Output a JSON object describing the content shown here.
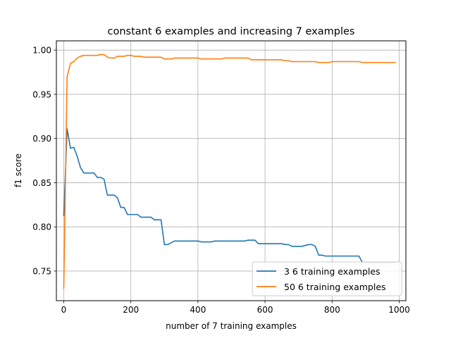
{
  "chart_data": {
    "type": "line",
    "title": "constant 6 examples and increasing 7 examples",
    "xlabel": "number of 7 training examples",
    "ylabel": "f1 score",
    "xlim": [
      -22,
      1020
    ],
    "ylim": [
      0.7165,
      1.0105
    ],
    "xticks": [
      0,
      200,
      400,
      600,
      800,
      1000
    ],
    "yticks": [
      0.75,
      0.8,
      0.85,
      0.9,
      0.95,
      1.0
    ],
    "xtick_labels": [
      "0",
      "200",
      "400",
      "600",
      "800",
      "1000"
    ],
    "ytick_labels": [
      "0.75",
      "0.80",
      "0.85",
      "0.90",
      "0.95",
      "1.00"
    ],
    "grid": true,
    "legend_position": "lower-right",
    "series": [
      {
        "name": "3 6 training examples",
        "color": "#1f77b4",
        "x": [
          0,
          10,
          20,
          30,
          40,
          50,
          60,
          70,
          80,
          90,
          100,
          110,
          120,
          130,
          140,
          150,
          160,
          170,
          180,
          190,
          200,
          210,
          220,
          230,
          240,
          250,
          260,
          270,
          280,
          290,
          300,
          310,
          320,
          330,
          340,
          350,
          360,
          370,
          380,
          390,
          400,
          410,
          420,
          430,
          440,
          450,
          460,
          470,
          480,
          490,
          500,
          510,
          520,
          530,
          540,
          550,
          560,
          570,
          580,
          590,
          600,
          610,
          620,
          630,
          640,
          650,
          660,
          670,
          680,
          690,
          700,
          710,
          720,
          730,
          740,
          750,
          760,
          770,
          780,
          790,
          800,
          810,
          820,
          830,
          840,
          850,
          860,
          870,
          880,
          890,
          900,
          910,
          920,
          930,
          940,
          950,
          960,
          970,
          980,
          990
        ],
        "y": [
          0.812,
          0.911,
          0.889,
          0.89,
          0.88,
          0.867,
          0.861,
          0.861,
          0.861,
          0.861,
          0.856,
          0.856,
          0.854,
          0.836,
          0.836,
          0.836,
          0.833,
          0.822,
          0.822,
          0.814,
          0.814,
          0.814,
          0.814,
          0.811,
          0.811,
          0.811,
          0.811,
          0.808,
          0.808,
          0.808,
          0.78,
          0.78,
          0.782,
          0.784,
          0.784,
          0.784,
          0.784,
          0.784,
          0.784,
          0.784,
          0.784,
          0.783,
          0.783,
          0.783,
          0.783,
          0.784,
          0.784,
          0.784,
          0.784,
          0.784,
          0.784,
          0.784,
          0.784,
          0.784,
          0.784,
          0.785,
          0.785,
          0.785,
          0.781,
          0.781,
          0.781,
          0.781,
          0.781,
          0.781,
          0.781,
          0.781,
          0.78,
          0.78,
          0.778,
          0.778,
          0.778,
          0.778,
          0.779,
          0.78,
          0.78,
          0.778,
          0.768,
          0.768,
          0.767,
          0.767,
          0.767,
          0.767,
          0.767,
          0.767,
          0.767,
          0.767,
          0.767,
          0.767,
          0.767,
          0.76,
          0.76,
          0.76,
          0.76,
          0.76,
          0.76,
          0.76,
          0.76,
          0.76,
          0.76,
          0.76
        ]
      },
      {
        "name": "50 6 training examples",
        "color": "#ff7f0e",
        "x": [
          0,
          10,
          20,
          30,
          40,
          50,
          60,
          70,
          80,
          90,
          100,
          110,
          120,
          130,
          140,
          150,
          160,
          170,
          180,
          190,
          200,
          210,
          220,
          230,
          240,
          250,
          260,
          270,
          280,
          290,
          300,
          310,
          320,
          330,
          340,
          350,
          360,
          370,
          380,
          390,
          400,
          410,
          420,
          430,
          440,
          450,
          460,
          470,
          480,
          490,
          500,
          510,
          520,
          530,
          540,
          550,
          560,
          570,
          580,
          590,
          600,
          610,
          620,
          630,
          640,
          650,
          660,
          670,
          680,
          690,
          700,
          710,
          720,
          730,
          740,
          750,
          760,
          770,
          780,
          790,
          800,
          810,
          820,
          830,
          840,
          850,
          860,
          870,
          880,
          890,
          900,
          910,
          920,
          930,
          940,
          950,
          960,
          970,
          980,
          990
        ],
        "y": [
          0.73,
          0.97,
          0.985,
          0.987,
          0.991,
          0.993,
          0.994,
          0.994,
          0.994,
          0.994,
          0.994,
          0.995,
          0.995,
          0.992,
          0.991,
          0.991,
          0.993,
          0.993,
          0.993,
          0.994,
          0.994,
          0.993,
          0.993,
          0.993,
          0.992,
          0.992,
          0.992,
          0.992,
          0.992,
          0.992,
          0.99,
          0.99,
          0.99,
          0.991,
          0.991,
          0.991,
          0.991,
          0.991,
          0.991,
          0.991,
          0.991,
          0.99,
          0.99,
          0.99,
          0.99,
          0.99,
          0.99,
          0.99,
          0.991,
          0.991,
          0.991,
          0.991,
          0.991,
          0.991,
          0.991,
          0.991,
          0.989,
          0.989,
          0.989,
          0.989,
          0.989,
          0.989,
          0.989,
          0.989,
          0.989,
          0.989,
          0.988,
          0.988,
          0.987,
          0.987,
          0.987,
          0.987,
          0.987,
          0.987,
          0.987,
          0.987,
          0.986,
          0.986,
          0.986,
          0.986,
          0.987,
          0.987,
          0.987,
          0.987,
          0.987,
          0.987,
          0.987,
          0.987,
          0.987,
          0.986,
          0.986,
          0.986,
          0.986,
          0.986,
          0.986,
          0.986,
          0.986,
          0.986,
          0.986,
          0.986
        ]
      }
    ]
  }
}
